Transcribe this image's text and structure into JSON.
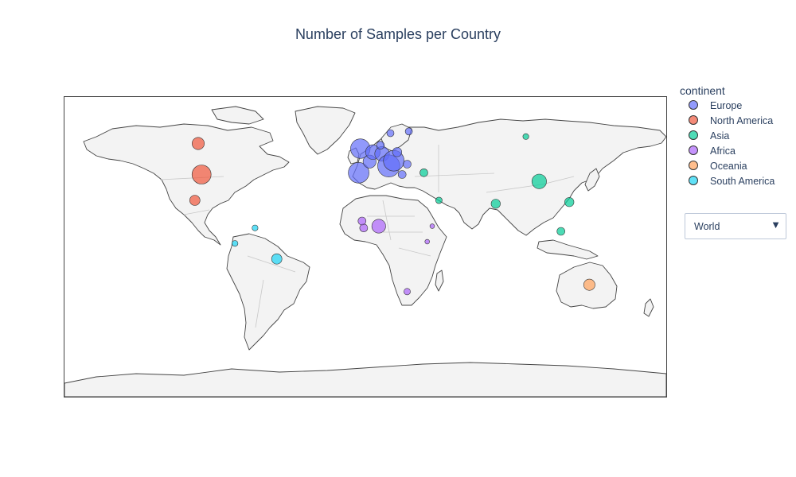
{
  "chart_data": {
    "type": "scatter_geo",
    "title": "Number of Samples per Country",
    "projection": "equirectangular",
    "legend": {
      "title": "continent",
      "placement": "right",
      "items": [
        {
          "name": "Europe",
          "color": "#636efa"
        },
        {
          "name": "North America",
          "color": "#ef553b"
        },
        {
          "name": "Asia",
          "color": "#00cc96"
        },
        {
          "name": "Africa",
          "color": "#ab63fa"
        },
        {
          "name": "Oceania",
          "color": "#ffa15a"
        },
        {
          "name": "South America",
          "color": "#19d3f3"
        }
      ]
    },
    "points": [
      {
        "continent": "North America",
        "lon": -100,
        "lat": 57,
        "size": 0.35
      },
      {
        "continent": "North America",
        "lon": -98,
        "lat": 39,
        "size": 0.85
      },
      {
        "continent": "North America",
        "lon": -102,
        "lat": 24,
        "size": 0.25
      },
      {
        "continent": "Europe",
        "lon": -3,
        "lat": 54,
        "size": 0.9
      },
      {
        "continent": "Europe",
        "lon": -4,
        "lat": 40,
        "size": 1.0
      },
      {
        "continent": "Europe",
        "lon": 2.5,
        "lat": 46.5,
        "size": 0.4
      },
      {
        "continent": "Europe",
        "lon": 4.5,
        "lat": 52,
        "size": 0.5
      },
      {
        "continent": "Europe",
        "lon": 10,
        "lat": 51,
        "size": 0.5
      },
      {
        "continent": "Europe",
        "lon": 14,
        "lat": 44,
        "size": 1.15
      },
      {
        "continent": "Europe",
        "lon": 17,
        "lat": 47,
        "size": 1.0
      },
      {
        "continent": "Europe",
        "lon": 9,
        "lat": 56,
        "size": 0.15
      },
      {
        "continent": "Europe",
        "lon": 19,
        "lat": 52,
        "size": 0.2
      },
      {
        "continent": "Europe",
        "lon": 15,
        "lat": 63,
        "size": 0.12
      },
      {
        "continent": "Europe",
        "lon": 26,
        "lat": 64,
        "size": 0.12
      },
      {
        "continent": "Europe",
        "lon": 25,
        "lat": 45,
        "size": 0.15
      },
      {
        "continent": "Europe",
        "lon": 22,
        "lat": 39,
        "size": 0.15
      },
      {
        "continent": "Asia",
        "lon": 104,
        "lat": 35,
        "size": 0.5
      },
      {
        "continent": "Asia",
        "lon": 78,
        "lat": 22,
        "size": 0.2
      },
      {
        "continent": "Asia",
        "lon": 122,
        "lat": 23,
        "size": 0.2
      },
      {
        "continent": "Asia",
        "lon": 44,
        "lat": 24,
        "size": 0.1
      },
      {
        "continent": "Asia",
        "lon": 117,
        "lat": 6,
        "size": 0.15
      },
      {
        "continent": "Asia",
        "lon": 35,
        "lat": 40,
        "size": 0.15
      },
      {
        "continent": "Asia",
        "lon": 96,
        "lat": 61,
        "size": 0.08
      },
      {
        "continent": "Africa",
        "lon": 8,
        "lat": 9,
        "size": 0.45
      },
      {
        "continent": "Africa",
        "lon": -1,
        "lat": 8,
        "size": 0.15
      },
      {
        "continent": "Africa",
        "lon": -2,
        "lat": 12,
        "size": 0.15
      },
      {
        "continent": "Africa",
        "lon": 40,
        "lat": 9,
        "size": 0.05
      },
      {
        "continent": "Africa",
        "lon": 37,
        "lat": 0,
        "size": 0.05
      },
      {
        "continent": "Africa",
        "lon": 25,
        "lat": -29,
        "size": 0.1
      },
      {
        "continent": "Oceania",
        "lon": 134,
        "lat": -25,
        "size": 0.3
      },
      {
        "continent": "South America",
        "lon": -53,
        "lat": -10,
        "size": 0.25
      },
      {
        "continent": "South America",
        "lon": -78,
        "lat": -1,
        "size": 0.08
      },
      {
        "continent": "South America",
        "lon": -66,
        "lat": 8,
        "size": 0.08
      }
    ]
  },
  "dropdown": {
    "selected": "World",
    "arrow_icon": "triangle-down-icon"
  },
  "colors": {
    "land": "#f3f3f3",
    "coast": "#444444",
    "borders": "#c8c8c8"
  }
}
